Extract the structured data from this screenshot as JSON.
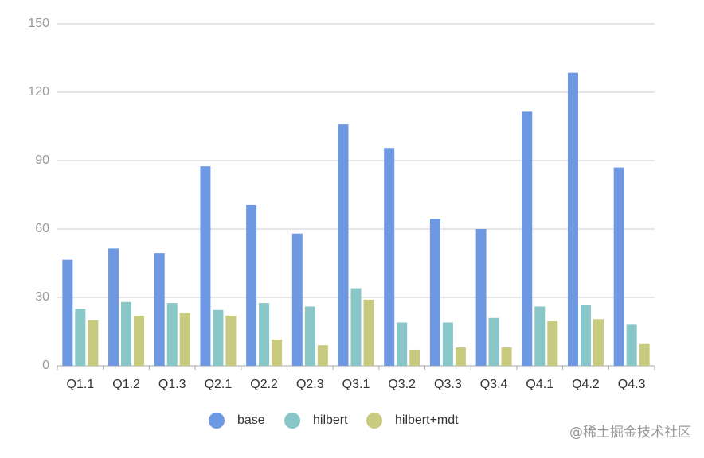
{
  "chart_data": {
    "type": "bar",
    "categories": [
      "Q1.1",
      "Q1.2",
      "Q1.3",
      "Q2.1",
      "Q2.2",
      "Q2.3",
      "Q3.1",
      "Q3.2",
      "Q3.3",
      "Q3.4",
      "Q4.1",
      "Q4.2",
      "Q4.3"
    ],
    "series": [
      {
        "name": "base",
        "color": "#6f98e3",
        "values": [
          46.5,
          51.5,
          49.5,
          87.5,
          70.5,
          58,
          106,
          95.5,
          64.5,
          60,
          111.5,
          128.5,
          87
        ]
      },
      {
        "name": "hilbert",
        "color": "#88c6c7",
        "values": [
          25,
          28,
          27.5,
          24.5,
          27.5,
          26,
          34,
          19,
          19,
          21,
          26,
          26.5,
          18
        ]
      },
      {
        "name": "hilbert+mdt",
        "color": "#c8cb7f",
        "values": [
          20,
          22,
          23,
          22,
          11.5,
          9,
          29,
          7,
          8,
          8,
          19.5,
          20.5,
          9.5
        ]
      }
    ],
    "ylim": [
      0,
      150
    ],
    "yticks": [
      0,
      30,
      60,
      90,
      120,
      150
    ],
    "grid": true,
    "legend": "bottom",
    "watermark": "@稀土掘金技术社区"
  }
}
